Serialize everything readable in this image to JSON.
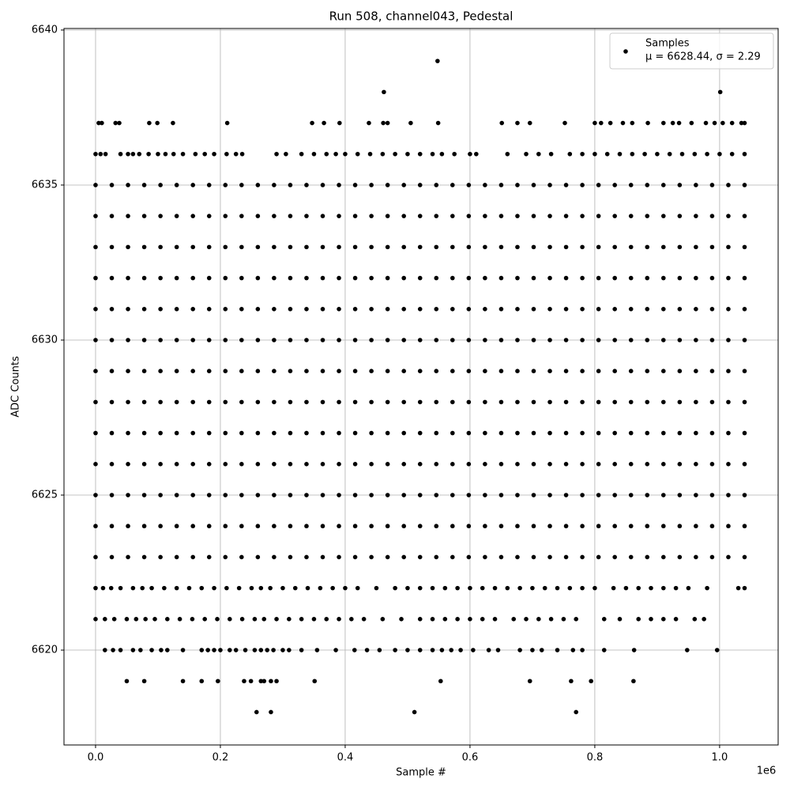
{
  "chart_data": {
    "type": "scatter",
    "title": "Run 508, channel043, Pedestal",
    "x_label": "Sample #",
    "y_label": "ADC Counts",
    "x_offset_label": "1e6",
    "series": [
      {
        "name": "Samples",
        "color": "#000000"
      }
    ],
    "legend_stats": "μ = 6628.44, σ = 2.29",
    "legend": "upper right",
    "grid": true,
    "xlim": [
      -50600,
      1093800
    ],
    "ylim": [
      6616.94,
      6640.05
    ],
    "xticks": [
      {
        "value": 0,
        "label": "0.0"
      },
      {
        "value": 200000,
        "label": "0.2"
      },
      {
        "value": 400000,
        "label": "0.4"
      },
      {
        "value": 600000,
        "label": "0.6"
      },
      {
        "value": 800000,
        "label": "0.8"
      },
      {
        "value": 1000000,
        "label": "1.0"
      }
    ],
    "yticks": [
      6620,
      6625,
      6630,
      6635,
      6640
    ],
    "rows": [
      {
        "y": 6639,
        "x": [
          548000
        ]
      },
      {
        "y": 6638,
        "x": [
          462000,
          1001000
        ]
      },
      {
        "y": 6637,
        "x": [
          5000,
          10000,
          32000,
          38000,
          86000,
          99000,
          124000,
          211000,
          347000,
          366000,
          391000,
          438000,
          461000,
          468000,
          505000,
          549000,
          651000,
          676000,
          696000,
          752000,
          800000,
          810000,
          825000,
          845000,
          860000,
          885000,
          910000,
          925000,
          935000,
          955000,
          978000,
          992000,
          1005000,
          1020000,
          1035000,
          1040000
        ]
      },
      {
        "y": 6636,
        "x": [
          0,
          8000,
          16000,
          40000,
          52000,
          60000,
          70000,
          85000,
          100000,
          112000,
          125000,
          140000,
          160000,
          175000,
          190000,
          210000,
          225000,
          235000,
          290000,
          305000,
          330000,
          350000,
          370000,
          385000,
          400000,
          420000,
          440000,
          460000,
          480000,
          500000,
          520000,
          540000,
          555000,
          575000,
          600000,
          610000,
          660000,
          690000,
          710000,
          730000,
          760000,
          780000,
          800000,
          820000,
          840000,
          860000,
          880000,
          900000,
          920000,
          940000,
          960000,
          980000,
          1000000,
          1020000,
          1040000
        ]
      },
      {
        "y": 6635,
        "x": [
          0,
          26000,
          52000,
          78000,
          104000,
          130000,
          156000,
          182000,
          208000,
          234000,
          260000,
          286000,
          312000,
          338000,
          364000,
          390000,
          416000,
          442000,
          468000,
          494000,
          520000,
          546000,
          572000,
          598000,
          624000,
          650000,
          676000,
          702000,
          728000,
          754000,
          780000,
          806000,
          832000,
          858000,
          884000,
          910000,
          936000,
          962000,
          988000,
          1014000,
          1040000
        ]
      },
      {
        "y": 6634,
        "x": [
          0,
          26000,
          52000,
          78000,
          104000,
          130000,
          156000,
          182000,
          208000,
          234000,
          260000,
          286000,
          312000,
          338000,
          364000,
          390000,
          416000,
          442000,
          468000,
          494000,
          520000,
          546000,
          572000,
          598000,
          624000,
          650000,
          676000,
          702000,
          728000,
          754000,
          780000,
          806000,
          832000,
          858000,
          884000,
          910000,
          936000,
          962000,
          988000,
          1014000,
          1040000
        ]
      },
      {
        "y": 6633,
        "x": [
          0,
          26000,
          52000,
          78000,
          104000,
          130000,
          156000,
          182000,
          208000,
          234000,
          260000,
          286000,
          312000,
          338000,
          364000,
          390000,
          416000,
          442000,
          468000,
          494000,
          520000,
          546000,
          572000,
          598000,
          624000,
          650000,
          676000,
          702000,
          728000,
          754000,
          780000,
          806000,
          832000,
          858000,
          884000,
          910000,
          936000,
          962000,
          988000,
          1014000,
          1040000
        ]
      },
      {
        "y": 6632,
        "x": [
          0,
          26000,
          52000,
          78000,
          104000,
          130000,
          156000,
          182000,
          208000,
          234000,
          260000,
          286000,
          312000,
          338000,
          364000,
          390000,
          416000,
          442000,
          468000,
          494000,
          520000,
          546000,
          572000,
          598000,
          624000,
          650000,
          676000,
          702000,
          728000,
          754000,
          780000,
          806000,
          832000,
          858000,
          884000,
          910000,
          936000,
          962000,
          988000,
          1014000,
          1040000
        ]
      },
      {
        "y": 6631,
        "x": [
          0,
          26000,
          52000,
          78000,
          104000,
          130000,
          156000,
          182000,
          208000,
          234000,
          260000,
          286000,
          312000,
          338000,
          364000,
          390000,
          416000,
          442000,
          468000,
          494000,
          520000,
          546000,
          572000,
          598000,
          624000,
          650000,
          676000,
          702000,
          728000,
          754000,
          780000,
          806000,
          832000,
          858000,
          884000,
          910000,
          936000,
          962000,
          988000,
          1014000,
          1040000
        ]
      },
      {
        "y": 6630,
        "x": [
          0,
          26000,
          52000,
          78000,
          104000,
          130000,
          156000,
          182000,
          208000,
          234000,
          260000,
          286000,
          312000,
          338000,
          364000,
          390000,
          416000,
          442000,
          468000,
          494000,
          520000,
          546000,
          572000,
          598000,
          624000,
          650000,
          676000,
          702000,
          728000,
          754000,
          780000,
          806000,
          832000,
          858000,
          884000,
          910000,
          936000,
          962000,
          988000,
          1014000,
          1040000
        ]
      },
      {
        "y": 6629,
        "x": [
          0,
          26000,
          52000,
          78000,
          104000,
          130000,
          156000,
          182000,
          208000,
          234000,
          260000,
          286000,
          312000,
          338000,
          364000,
          390000,
          416000,
          442000,
          468000,
          494000,
          520000,
          546000,
          572000,
          598000,
          624000,
          650000,
          676000,
          702000,
          728000,
          754000,
          780000,
          806000,
          832000,
          858000,
          884000,
          910000,
          936000,
          962000,
          988000,
          1014000,
          1040000
        ]
      },
      {
        "y": 6628,
        "x": [
          0,
          26000,
          52000,
          78000,
          104000,
          130000,
          156000,
          182000,
          208000,
          234000,
          260000,
          286000,
          312000,
          338000,
          364000,
          390000,
          416000,
          442000,
          468000,
          494000,
          520000,
          546000,
          572000,
          598000,
          624000,
          650000,
          676000,
          702000,
          728000,
          754000,
          780000,
          806000,
          832000,
          858000,
          884000,
          910000,
          936000,
          962000,
          988000,
          1014000,
          1040000
        ]
      },
      {
        "y": 6627,
        "x": [
          0,
          26000,
          52000,
          78000,
          104000,
          130000,
          156000,
          182000,
          208000,
          234000,
          260000,
          286000,
          312000,
          338000,
          364000,
          390000,
          416000,
          442000,
          468000,
          494000,
          520000,
          546000,
          572000,
          598000,
          624000,
          650000,
          676000,
          702000,
          728000,
          754000,
          780000,
          806000,
          832000,
          858000,
          884000,
          910000,
          936000,
          962000,
          988000,
          1014000,
          1040000
        ]
      },
      {
        "y": 6626,
        "x": [
          0,
          26000,
          52000,
          78000,
          104000,
          130000,
          156000,
          182000,
          208000,
          234000,
          260000,
          286000,
          312000,
          338000,
          364000,
          390000,
          416000,
          442000,
          468000,
          494000,
          520000,
          546000,
          572000,
          598000,
          624000,
          650000,
          676000,
          702000,
          728000,
          754000,
          780000,
          806000,
          832000,
          858000,
          884000,
          910000,
          936000,
          962000,
          988000,
          1014000,
          1040000
        ]
      },
      {
        "y": 6625,
        "x": [
          0,
          26000,
          52000,
          78000,
          104000,
          130000,
          156000,
          182000,
          208000,
          234000,
          260000,
          286000,
          312000,
          338000,
          364000,
          390000,
          416000,
          442000,
          468000,
          494000,
          520000,
          546000,
          572000,
          598000,
          624000,
          650000,
          676000,
          702000,
          728000,
          754000,
          780000,
          806000,
          832000,
          858000,
          884000,
          910000,
          936000,
          962000,
          988000,
          1014000,
          1040000
        ]
      },
      {
        "y": 6624,
        "x": [
          0,
          26000,
          52000,
          78000,
          104000,
          130000,
          156000,
          182000,
          208000,
          234000,
          260000,
          286000,
          312000,
          338000,
          364000,
          390000,
          416000,
          442000,
          468000,
          494000,
          520000,
          546000,
          572000,
          598000,
          624000,
          650000,
          676000,
          702000,
          728000,
          754000,
          780000,
          806000,
          832000,
          858000,
          884000,
          910000,
          936000,
          962000,
          988000,
          1014000,
          1040000
        ]
      },
      {
        "y": 6623,
        "x": [
          0,
          26000,
          52000,
          78000,
          104000,
          130000,
          156000,
          182000,
          208000,
          234000,
          260000,
          286000,
          312000,
          338000,
          364000,
          390000,
          416000,
          442000,
          468000,
          494000,
          520000,
          546000,
          572000,
          598000,
          624000,
          650000,
          676000,
          702000,
          728000,
          754000,
          780000,
          806000,
          832000,
          858000,
          884000,
          910000,
          936000,
          962000,
          988000,
          1014000,
          1040000
        ]
      },
      {
        "y": 6622,
        "x": [
          0,
          12000,
          25000,
          40000,
          60000,
          75000,
          90000,
          110000,
          130000,
          150000,
          170000,
          190000,
          210000,
          230000,
          250000,
          265000,
          280000,
          300000,
          320000,
          340000,
          360000,
          380000,
          400000,
          420000,
          450000,
          480000,
          500000,
          520000,
          540000,
          560000,
          580000,
          600000,
          620000,
          640000,
          660000,
          680000,
          700000,
          720000,
          740000,
          760000,
          780000,
          800000,
          830000,
          850000,
          870000,
          890000,
          910000,
          930000,
          950000,
          980000,
          1030000,
          1040000
        ]
      },
      {
        "y": 6621,
        "x": [
          0,
          15000,
          30000,
          50000,
          65000,
          80000,
          95000,
          115000,
          135000,
          155000,
          175000,
          195000,
          215000,
          235000,
          255000,
          270000,
          290000,
          310000,
          330000,
          350000,
          370000,
          390000,
          410000,
          430000,
          460000,
          490000,
          520000,
          540000,
          560000,
          580000,
          600000,
          620000,
          640000,
          670000,
          690000,
          710000,
          730000,
          750000,
          770000,
          815000,
          840000,
          870000,
          890000,
          910000,
          930000,
          960000,
          975000
        ]
      },
      {
        "y": 6620,
        "x": [
          15000,
          28000,
          40000,
          60000,
          72000,
          90000,
          105000,
          115000,
          140000,
          170000,
          180000,
          190000,
          200000,
          215000,
          225000,
          240000,
          255000,
          265000,
          275000,
          285000,
          300000,
          310000,
          330000,
          355000,
          385000,
          415000,
          435000,
          455000,
          480000,
          500000,
          520000,
          540000,
          555000,
          570000,
          585000,
          605000,
          630000,
          645000,
          680000,
          700000,
          715000,
          740000,
          765000,
          780000,
          815000,
          863000,
          948000,
          996000
        ]
      },
      {
        "y": 6619,
        "x": [
          50000,
          78000,
          140000,
          170000,
          196000,
          238000,
          249000,
          265000,
          270000,
          281000,
          290000,
          351000,
          553000,
          696000,
          762000,
          794000,
          862000
        ]
      },
      {
        "y": 6618,
        "x": [
          258000,
          281000,
          511000,
          770000
        ]
      }
    ]
  }
}
